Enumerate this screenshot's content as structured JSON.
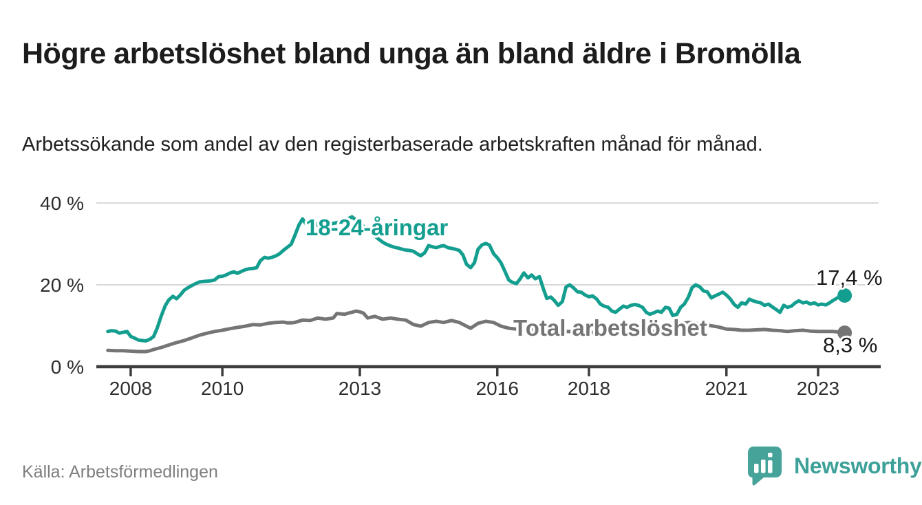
{
  "header": {
    "title": "Högre arbetslöshet bland unga än bland äldre i Bromölla",
    "subtitle": "Arbetssökande som andel av den registerbaserade arbetskraften månad för månad."
  },
  "footer": {
    "source": "Källa: Arbetsförmedlingen",
    "brand": "Newsworthy"
  },
  "colors": {
    "accent_teal": "#149e8f",
    "series_gray": "#757575",
    "grid": "#d8d8d8",
    "axis": "#3d3d3d",
    "tick_text": "#2d2d2d",
    "end_label_text": "#1a1a1a",
    "brand_teal": "#45a39a"
  },
  "chart_data": {
    "type": "line",
    "title": "Högre arbetslöshet bland unga än bland äldre i Bromölla",
    "subtitle": "Arbetssökande som andel av den registerbaserade arbetskraften månad för månad.",
    "unit": "%",
    "x_axis": {
      "ticks": [
        2008,
        2010,
        2013,
        2016,
        2018,
        2021,
        2023
      ],
      "tick_labels": [
        "2008",
        "2010",
        "2013",
        "2016",
        "2018",
        "2021",
        "2023"
      ],
      "range_years": [
        2007.9,
        2024.2
      ],
      "grid": false
    },
    "y_axis": {
      "ticks": [
        0,
        20,
        40
      ],
      "tick_labels": [
        "0 %",
        "20 %",
        "40 %"
      ],
      "range": [
        0,
        42.5
      ],
      "grid": true
    },
    "legend_position": "inline-labels",
    "series": [
      {
        "name": "18-24-åringar",
        "color": "#149e8f",
        "end_value": 17.4,
        "end_label": "17,4 %",
        "points": [
          [
            2008.0,
            8.6
          ],
          [
            2008.08,
            8.8
          ],
          [
            2008.17,
            8.7
          ],
          [
            2008.25,
            8.2
          ],
          [
            2008.42,
            8.6
          ],
          [
            2008.5,
            7.4
          ],
          [
            2008.58,
            7.0
          ],
          [
            2008.67,
            6.5
          ],
          [
            2008.83,
            6.3
          ],
          [
            2008.92,
            6.7
          ],
          [
            2009.0,
            7.4
          ],
          [
            2009.08,
            9.5
          ],
          [
            2009.17,
            12.5
          ],
          [
            2009.25,
            14.8
          ],
          [
            2009.33,
            16.3
          ],
          [
            2009.42,
            17.2
          ],
          [
            2009.5,
            16.6
          ],
          [
            2009.58,
            17.5
          ],
          [
            2009.67,
            18.7
          ],
          [
            2009.75,
            19.3
          ],
          [
            2009.83,
            19.8
          ],
          [
            2009.92,
            20.3
          ],
          [
            2010.0,
            20.7
          ],
          [
            2010.08,
            20.8
          ],
          [
            2010.17,
            20.9
          ],
          [
            2010.25,
            21.0
          ],
          [
            2010.33,
            21.2
          ],
          [
            2010.42,
            22.0
          ],
          [
            2010.5,
            22.1
          ],
          [
            2010.58,
            22.4
          ],
          [
            2010.67,
            22.9
          ],
          [
            2010.75,
            23.2
          ],
          [
            2010.83,
            22.8
          ],
          [
            2010.92,
            23.3
          ],
          [
            2011.0,
            23.7
          ],
          [
            2011.08,
            23.9
          ],
          [
            2011.17,
            24.0
          ],
          [
            2011.25,
            24.2
          ],
          [
            2011.33,
            25.9
          ],
          [
            2011.42,
            26.7
          ],
          [
            2011.5,
            26.5
          ],
          [
            2011.58,
            26.7
          ],
          [
            2011.67,
            27.1
          ],
          [
            2011.75,
            27.6
          ],
          [
            2011.83,
            28.4
          ],
          [
            2011.92,
            29.2
          ],
          [
            2012.0,
            29.9
          ],
          [
            2012.08,
            32.0
          ],
          [
            2012.17,
            34.6
          ],
          [
            2012.25,
            36.1
          ],
          [
            2012.33,
            34.8
          ],
          [
            2012.42,
            34.4
          ],
          [
            2012.5,
            35.2
          ],
          [
            2012.58,
            34.6
          ],
          [
            2012.67,
            34.1
          ],
          [
            2012.75,
            34.5
          ],
          [
            2012.83,
            34.9
          ],
          [
            2012.92,
            35.0
          ],
          [
            2013.0,
            35.2
          ],
          [
            2013.08,
            35.5
          ],
          [
            2013.17,
            35.9
          ],
          [
            2013.25,
            36.2
          ],
          [
            2013.33,
            36.6
          ],
          [
            2013.42,
            35.8
          ],
          [
            2013.5,
            35.1
          ],
          [
            2013.58,
            34.3
          ],
          [
            2013.67,
            33.6
          ],
          [
            2013.75,
            32.7
          ],
          [
            2013.83,
            31.9
          ],
          [
            2013.92,
            31.1
          ],
          [
            2014.0,
            30.4
          ],
          [
            2014.08,
            29.9
          ],
          [
            2014.17,
            29.5
          ],
          [
            2014.25,
            29.2
          ],
          [
            2014.33,
            29.0
          ],
          [
            2014.42,
            28.7
          ],
          [
            2014.5,
            28.5
          ],
          [
            2014.58,
            28.4
          ],
          [
            2014.67,
            28.2
          ],
          [
            2014.75,
            27.6
          ],
          [
            2014.83,
            27.1
          ],
          [
            2014.92,
            27.9
          ],
          [
            2015.0,
            29.6
          ],
          [
            2015.08,
            29.3
          ],
          [
            2015.17,
            29.1
          ],
          [
            2015.25,
            29.4
          ],
          [
            2015.33,
            29.6
          ],
          [
            2015.42,
            29.1
          ],
          [
            2015.5,
            28.9
          ],
          [
            2015.58,
            28.7
          ],
          [
            2015.67,
            28.4
          ],
          [
            2015.75,
            27.3
          ],
          [
            2015.83,
            25.0
          ],
          [
            2015.92,
            24.2
          ],
          [
            2016.0,
            25.4
          ],
          [
            2016.08,
            28.7
          ],
          [
            2016.17,
            29.8
          ],
          [
            2016.25,
            30.1
          ],
          [
            2016.33,
            29.7
          ],
          [
            2016.42,
            27.6
          ],
          [
            2016.5,
            26.6
          ],
          [
            2016.58,
            25.4
          ],
          [
            2016.67,
            23.2
          ],
          [
            2016.75,
            21.2
          ],
          [
            2016.83,
            20.6
          ],
          [
            2016.92,
            20.3
          ],
          [
            2017.0,
            21.5
          ],
          [
            2017.08,
            22.9
          ],
          [
            2017.17,
            21.7
          ],
          [
            2017.25,
            22.4
          ],
          [
            2017.33,
            21.5
          ],
          [
            2017.42,
            22.0
          ],
          [
            2017.5,
            19.2
          ],
          [
            2017.58,
            16.7
          ],
          [
            2017.67,
            17.0
          ],
          [
            2017.75,
            16.1
          ],
          [
            2017.83,
            15.0
          ],
          [
            2017.92,
            15.9
          ],
          [
            2018.0,
            19.5
          ],
          [
            2018.08,
            20.0
          ],
          [
            2018.17,
            19.2
          ],
          [
            2018.25,
            18.3
          ],
          [
            2018.33,
            18.2
          ],
          [
            2018.42,
            17.5
          ],
          [
            2018.5,
            17.1
          ],
          [
            2018.58,
            17.3
          ],
          [
            2018.67,
            16.5
          ],
          [
            2018.75,
            15.3
          ],
          [
            2018.83,
            14.8
          ],
          [
            2018.92,
            14.5
          ],
          [
            2019.0,
            13.6
          ],
          [
            2019.08,
            13.3
          ],
          [
            2019.17,
            14.1
          ],
          [
            2019.25,
            14.8
          ],
          [
            2019.33,
            14.5
          ],
          [
            2019.42,
            15.0
          ],
          [
            2019.5,
            15.2
          ],
          [
            2019.58,
            15.0
          ],
          [
            2019.67,
            14.5
          ],
          [
            2019.75,
            13.3
          ],
          [
            2019.83,
            12.8
          ],
          [
            2019.92,
            13.2
          ],
          [
            2020.0,
            13.6
          ],
          [
            2020.08,
            13.3
          ],
          [
            2020.17,
            14.5
          ],
          [
            2020.25,
            14.3
          ],
          [
            2020.33,
            12.5
          ],
          [
            2020.42,
            12.8
          ],
          [
            2020.5,
            14.5
          ],
          [
            2020.58,
            15.3
          ],
          [
            2020.67,
            17.0
          ],
          [
            2020.75,
            19.3
          ],
          [
            2020.83,
            20.0
          ],
          [
            2020.92,
            19.5
          ],
          [
            2021.0,
            18.5
          ],
          [
            2021.08,
            18.3
          ],
          [
            2021.17,
            16.8
          ],
          [
            2021.25,
            17.3
          ],
          [
            2021.33,
            17.7
          ],
          [
            2021.42,
            18.2
          ],
          [
            2021.5,
            17.5
          ],
          [
            2021.58,
            16.6
          ],
          [
            2021.67,
            15.2
          ],
          [
            2021.75,
            14.5
          ],
          [
            2021.83,
            15.6
          ],
          [
            2021.92,
            15.3
          ],
          [
            2022.0,
            16.5
          ],
          [
            2022.08,
            16.1
          ],
          [
            2022.17,
            15.8
          ],
          [
            2022.25,
            15.6
          ],
          [
            2022.33,
            15.0
          ],
          [
            2022.42,
            15.3
          ],
          [
            2022.5,
            14.6
          ],
          [
            2022.58,
            14.0
          ],
          [
            2022.67,
            13.3
          ],
          [
            2022.75,
            15.0
          ],
          [
            2022.83,
            14.5
          ],
          [
            2022.92,
            14.8
          ],
          [
            2023.0,
            15.6
          ],
          [
            2023.08,
            16.1
          ],
          [
            2023.17,
            15.6
          ],
          [
            2023.25,
            15.8
          ],
          [
            2023.33,
            15.3
          ],
          [
            2023.42,
            15.6
          ],
          [
            2023.5,
            15.1
          ],
          [
            2023.58,
            15.3
          ],
          [
            2023.67,
            15.1
          ],
          [
            2023.75,
            15.6
          ],
          [
            2023.83,
            16.2
          ],
          [
            2023.92,
            16.8
          ],
          [
            2024.0,
            17.1
          ],
          [
            2024.08,
            17.4
          ]
        ]
      },
      {
        "name": "Total arbetslöshet",
        "color": "#757575",
        "end_value": 8.3,
        "end_label": "8,3 %",
        "points": [
          [
            2008.0,
            4.0
          ],
          [
            2008.17,
            3.9
          ],
          [
            2008.33,
            3.9
          ],
          [
            2008.5,
            3.8
          ],
          [
            2008.67,
            3.7
          ],
          [
            2008.83,
            3.7
          ],
          [
            2008.92,
            3.9
          ],
          [
            2009.0,
            4.2
          ],
          [
            2009.17,
            4.7
          ],
          [
            2009.33,
            5.3
          ],
          [
            2009.5,
            5.9
          ],
          [
            2009.67,
            6.4
          ],
          [
            2009.83,
            7.0
          ],
          [
            2010.0,
            7.7
          ],
          [
            2010.17,
            8.2
          ],
          [
            2010.33,
            8.6
          ],
          [
            2010.5,
            8.9
          ],
          [
            2010.67,
            9.3
          ],
          [
            2010.83,
            9.6
          ],
          [
            2011.0,
            9.9
          ],
          [
            2011.17,
            10.3
          ],
          [
            2011.33,
            10.2
          ],
          [
            2011.5,
            10.6
          ],
          [
            2011.67,
            10.8
          ],
          [
            2011.83,
            10.9
          ],
          [
            2011.92,
            10.7
          ],
          [
            2012.0,
            10.7
          ],
          [
            2012.08,
            10.8
          ],
          [
            2012.25,
            11.4
          ],
          [
            2012.42,
            11.3
          ],
          [
            2012.58,
            11.9
          ],
          [
            2012.75,
            11.6
          ],
          [
            2012.92,
            11.9
          ],
          [
            2013.0,
            13.0
          ],
          [
            2013.08,
            12.9
          ],
          [
            2013.17,
            12.8
          ],
          [
            2013.25,
            13.1
          ],
          [
            2013.33,
            13.3
          ],
          [
            2013.42,
            13.6
          ],
          [
            2013.5,
            13.4
          ],
          [
            2013.58,
            13.1
          ],
          [
            2013.67,
            11.9
          ],
          [
            2013.83,
            12.3
          ],
          [
            2014.0,
            11.6
          ],
          [
            2014.17,
            11.9
          ],
          [
            2014.33,
            11.6
          ],
          [
            2014.5,
            11.4
          ],
          [
            2014.67,
            10.3
          ],
          [
            2014.83,
            9.9
          ],
          [
            2015.0,
            10.8
          ],
          [
            2015.17,
            11.1
          ],
          [
            2015.33,
            10.8
          ],
          [
            2015.5,
            11.3
          ],
          [
            2015.67,
            10.8
          ],
          [
            2015.83,
            9.9
          ],
          [
            2015.92,
            9.4
          ],
          [
            2016.08,
            10.6
          ],
          [
            2016.25,
            11.1
          ],
          [
            2016.42,
            10.8
          ],
          [
            2016.58,
            9.9
          ],
          [
            2016.75,
            9.4
          ],
          [
            2016.92,
            9.2
          ],
          [
            2017.08,
            9.4
          ],
          [
            2017.25,
            9.1
          ],
          [
            2017.5,
            8.9
          ],
          [
            2017.75,
            8.7
          ],
          [
            2018.0,
            8.6
          ],
          [
            2018.25,
            8.5
          ],
          [
            2018.5,
            8.4
          ],
          [
            2018.75,
            8.3
          ],
          [
            2019.0,
            8.2
          ],
          [
            2019.25,
            8.3
          ],
          [
            2019.5,
            8.4
          ],
          [
            2019.75,
            8.5
          ],
          [
            2020.0,
            8.7
          ],
          [
            2020.17,
            9.2
          ],
          [
            2020.33,
            9.9
          ],
          [
            2020.5,
            10.5
          ],
          [
            2020.67,
            10.8
          ],
          [
            2020.83,
            10.6
          ],
          [
            2021.0,
            10.3
          ],
          [
            2021.17,
            10.0
          ],
          [
            2021.33,
            9.7
          ],
          [
            2021.5,
            9.2
          ],
          [
            2021.67,
            9.1
          ],
          [
            2021.83,
            8.9
          ],
          [
            2022.0,
            8.9
          ],
          [
            2022.17,
            9.0
          ],
          [
            2022.33,
            9.1
          ],
          [
            2022.5,
            8.9
          ],
          [
            2022.67,
            8.8
          ],
          [
            2022.83,
            8.6
          ],
          [
            2023.0,
            8.8
          ],
          [
            2023.17,
            8.9
          ],
          [
            2023.33,
            8.7
          ],
          [
            2023.5,
            8.6
          ],
          [
            2023.67,
            8.6
          ],
          [
            2023.83,
            8.6
          ],
          [
            2024.0,
            8.4
          ],
          [
            2024.08,
            8.3
          ]
        ]
      }
    ]
  }
}
